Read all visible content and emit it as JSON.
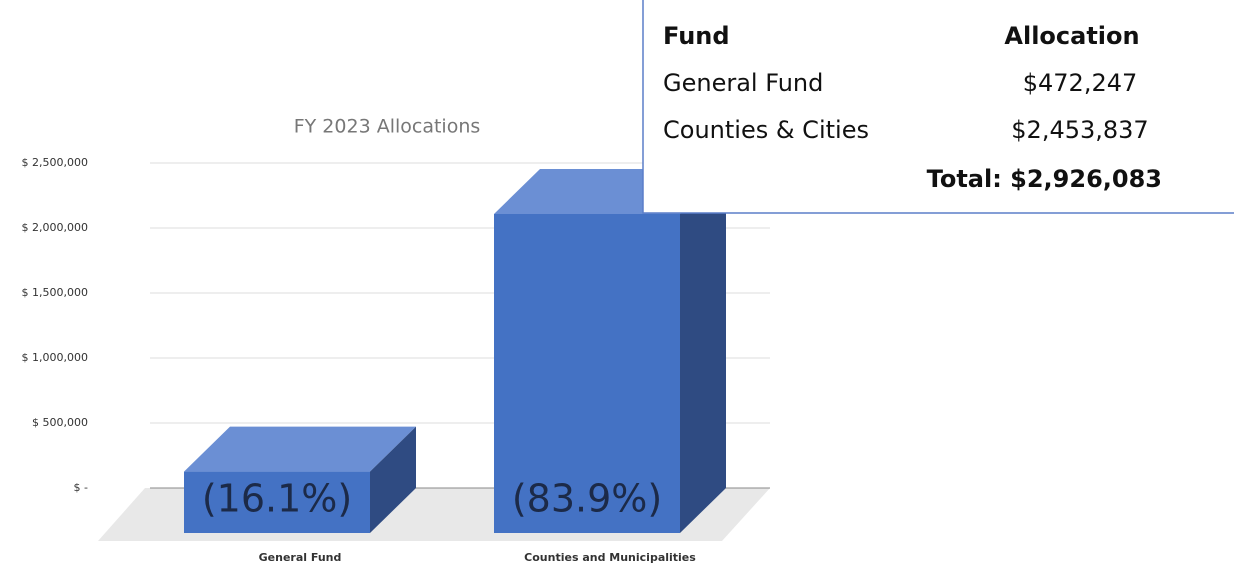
{
  "chart_data": {
    "type": "bar3d",
    "title": "FY 2023 Allocations",
    "categories": [
      "General Fund",
      "Counties and Municipalities"
    ],
    "values": [
      472247,
      2453837
    ],
    "bar_labels": [
      "(16.1%)",
      "(83.9%)"
    ],
    "color": "#4472c4",
    "ylim": [
      0,
      2500000
    ],
    "yticks": [
      {
        "value": 0,
        "label": "$ -"
      },
      {
        "value": 500000,
        "label": "$ 500,000"
      },
      {
        "value": 1000000,
        "label": "$ 1,000,000"
      },
      {
        "value": 1500000,
        "label": "$ 1,500,000"
      },
      {
        "value": 2000000,
        "label": "$ 2,000,000"
      },
      {
        "value": 2500000,
        "label": "$ 2,500,000"
      }
    ],
    "grid": true
  },
  "table": {
    "header": [
      "Fund",
      "Allocation"
    ],
    "rows": [
      [
        "General Fund",
        "$472,247"
      ],
      [
        "Counties & Cities",
        "$2,453,837"
      ]
    ],
    "total": "Total: $2,926,083"
  }
}
